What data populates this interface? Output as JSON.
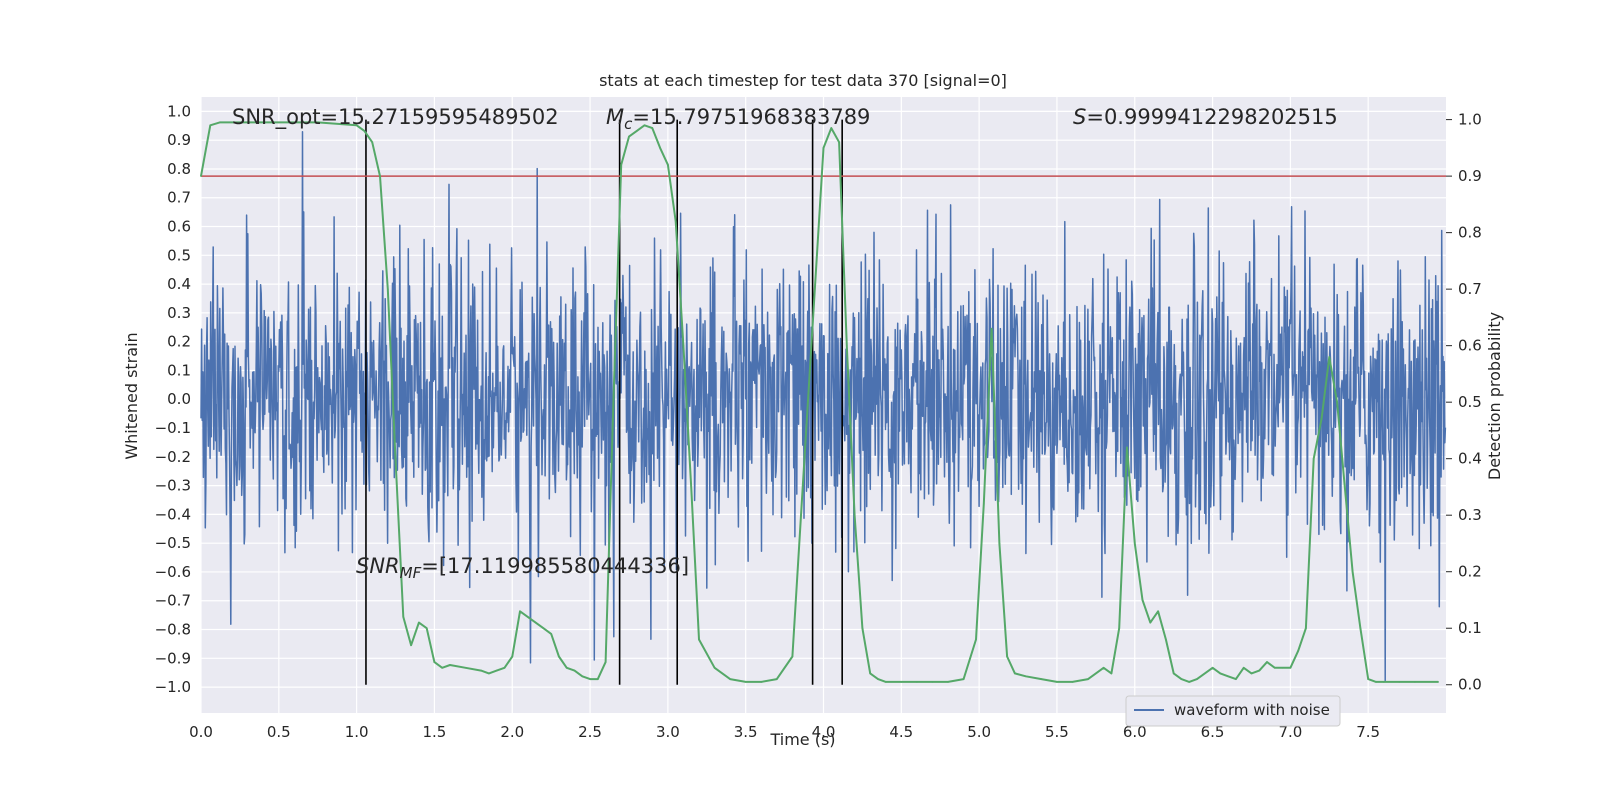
{
  "chart_data": {
    "type": "line",
    "title": "stats at each timestep for test data 370 [signal=0]",
    "xlabel": "Time (s)",
    "ylabel_left": "Whitened strain",
    "ylabel_right": "Detection probability",
    "xlim": [
      0.0,
      8.0
    ],
    "ylim_left": [
      -1.09,
      1.05
    ],
    "ylim_right": [
      -0.05,
      1.04
    ],
    "x_ticks": [
      "0.0",
      "0.5",
      "1.0",
      "1.5",
      "2.0",
      "2.5",
      "3.0",
      "3.5",
      "4.0",
      "4.5",
      "5.0",
      "5.5",
      "6.0",
      "6.5",
      "7.0",
      "7.5"
    ],
    "y_ticks_left": [
      "1.0",
      "0.9",
      "0.8",
      "0.7",
      "0.6",
      "0.5",
      "0.4",
      "0.3",
      "0.2",
      "0.1",
      "0.0",
      "−0.1",
      "−0.2",
      "−0.3",
      "−0.4",
      "−0.5",
      "−0.6",
      "−0.7",
      "−0.8",
      "−0.9",
      "−1.0"
    ],
    "y_ticks_right": [
      "1.0",
      "0.9",
      "0.8",
      "0.7",
      "0.6",
      "0.5",
      "0.4",
      "0.3",
      "0.2",
      "0.1",
      "0.0"
    ],
    "grid": true,
    "legend_position": "lower-right",
    "series": [
      {
        "name": "waveform with noise",
        "axis": "left",
        "kind": "noise",
        "color": "#4c72b0",
        "sample_rate_hz": 256,
        "duration_s": 8.0,
        "typical_amplitude": 0.3,
        "peak_amplitude": 1.0
      },
      {
        "axis": "right",
        "color": "#55a868",
        "x": [
          0.0,
          0.06,
          0.12,
          0.25,
          0.5,
          0.75,
          1.0,
          1.05,
          1.1,
          1.15,
          1.2,
          1.25,
          1.3,
          1.35,
          1.4,
          1.45,
          1.5,
          1.55,
          1.6,
          1.7,
          1.8,
          1.85,
          1.9,
          1.95,
          2.0,
          2.05,
          2.1,
          2.15,
          2.2,
          2.25,
          2.3,
          2.35,
          2.4,
          2.45,
          2.5,
          2.55,
          2.6,
          2.65,
          2.7,
          2.75,
          2.8,
          2.85,
          2.9,
          2.95,
          3.0,
          3.05,
          3.1,
          3.15,
          3.2,
          3.3,
          3.4,
          3.5,
          3.6,
          3.7,
          3.8,
          3.9,
          4.0,
          4.05,
          4.1,
          4.15,
          4.2,
          4.25,
          4.3,
          4.35,
          4.4,
          4.5,
          4.6,
          4.7,
          4.8,
          4.9,
          4.98,
          5.03,
          5.08,
          5.13,
          5.18,
          5.23,
          5.3,
          5.4,
          5.5,
          5.6,
          5.7,
          5.8,
          5.85,
          5.9,
          5.95,
          6.0,
          6.05,
          6.1,
          6.15,
          6.2,
          6.25,
          6.3,
          6.35,
          6.4,
          6.5,
          6.55,
          6.6,
          6.65,
          6.7,
          6.75,
          6.8,
          6.85,
          6.9,
          6.95,
          7.0,
          7.05,
          7.1,
          7.15,
          7.2,
          7.25,
          7.3,
          7.35,
          7.4,
          7.45,
          7.5,
          7.55,
          7.6,
          7.7,
          7.8,
          7.95
        ],
        "values": [
          0.9,
          0.99,
          0.995,
          0.995,
          0.995,
          0.995,
          0.99,
          0.98,
          0.96,
          0.9,
          0.7,
          0.4,
          0.12,
          0.07,
          0.11,
          0.1,
          0.04,
          0.03,
          0.035,
          0.03,
          0.025,
          0.02,
          0.025,
          0.03,
          0.05,
          0.13,
          0.12,
          0.11,
          0.1,
          0.09,
          0.05,
          0.03,
          0.025,
          0.015,
          0.01,
          0.01,
          0.04,
          0.5,
          0.92,
          0.97,
          0.98,
          0.99,
          0.985,
          0.95,
          0.92,
          0.82,
          0.6,
          0.35,
          0.08,
          0.03,
          0.01,
          0.005,
          0.005,
          0.01,
          0.05,
          0.5,
          0.95,
          0.985,
          0.96,
          0.6,
          0.3,
          0.1,
          0.02,
          0.01,
          0.005,
          0.005,
          0.005,
          0.005,
          0.005,
          0.01,
          0.08,
          0.32,
          0.63,
          0.25,
          0.05,
          0.02,
          0.015,
          0.01,
          0.005,
          0.005,
          0.01,
          0.03,
          0.02,
          0.1,
          0.42,
          0.25,
          0.15,
          0.11,
          0.13,
          0.08,
          0.02,
          0.01,
          0.005,
          0.01,
          0.03,
          0.02,
          0.015,
          0.01,
          0.03,
          0.02,
          0.025,
          0.04,
          0.03,
          0.03,
          0.03,
          0.06,
          0.1,
          0.4,
          0.47,
          0.58,
          0.5,
          0.35,
          0.2,
          0.1,
          0.01,
          0.005,
          0.005,
          0.005,
          0.005,
          0.005
        ]
      }
    ],
    "threshold_line": {
      "value_right": 0.9,
      "color": "#c44e52"
    },
    "vertical_markers_s": [
      1.06,
      2.69,
      3.06,
      3.93,
      4.12
    ],
    "annotations": [
      {
        "text": "SNR_opt=15.27159595489502"
      },
      {
        "text": "M_c=15.79751968383789",
        "math_sym": "M",
        "math_sub": "c",
        "rest": "=15.79751968383789"
      },
      {
        "text": "S=0.9999412298202515",
        "math_sym": "S",
        "rest": "=0.9999412298202515"
      },
      {
        "text": "SNR_MF=[17.119985580444336]",
        "math_sym": "SNR",
        "math_sub": "MF",
        "rest": "=[17.119985580444336]"
      }
    ]
  }
}
